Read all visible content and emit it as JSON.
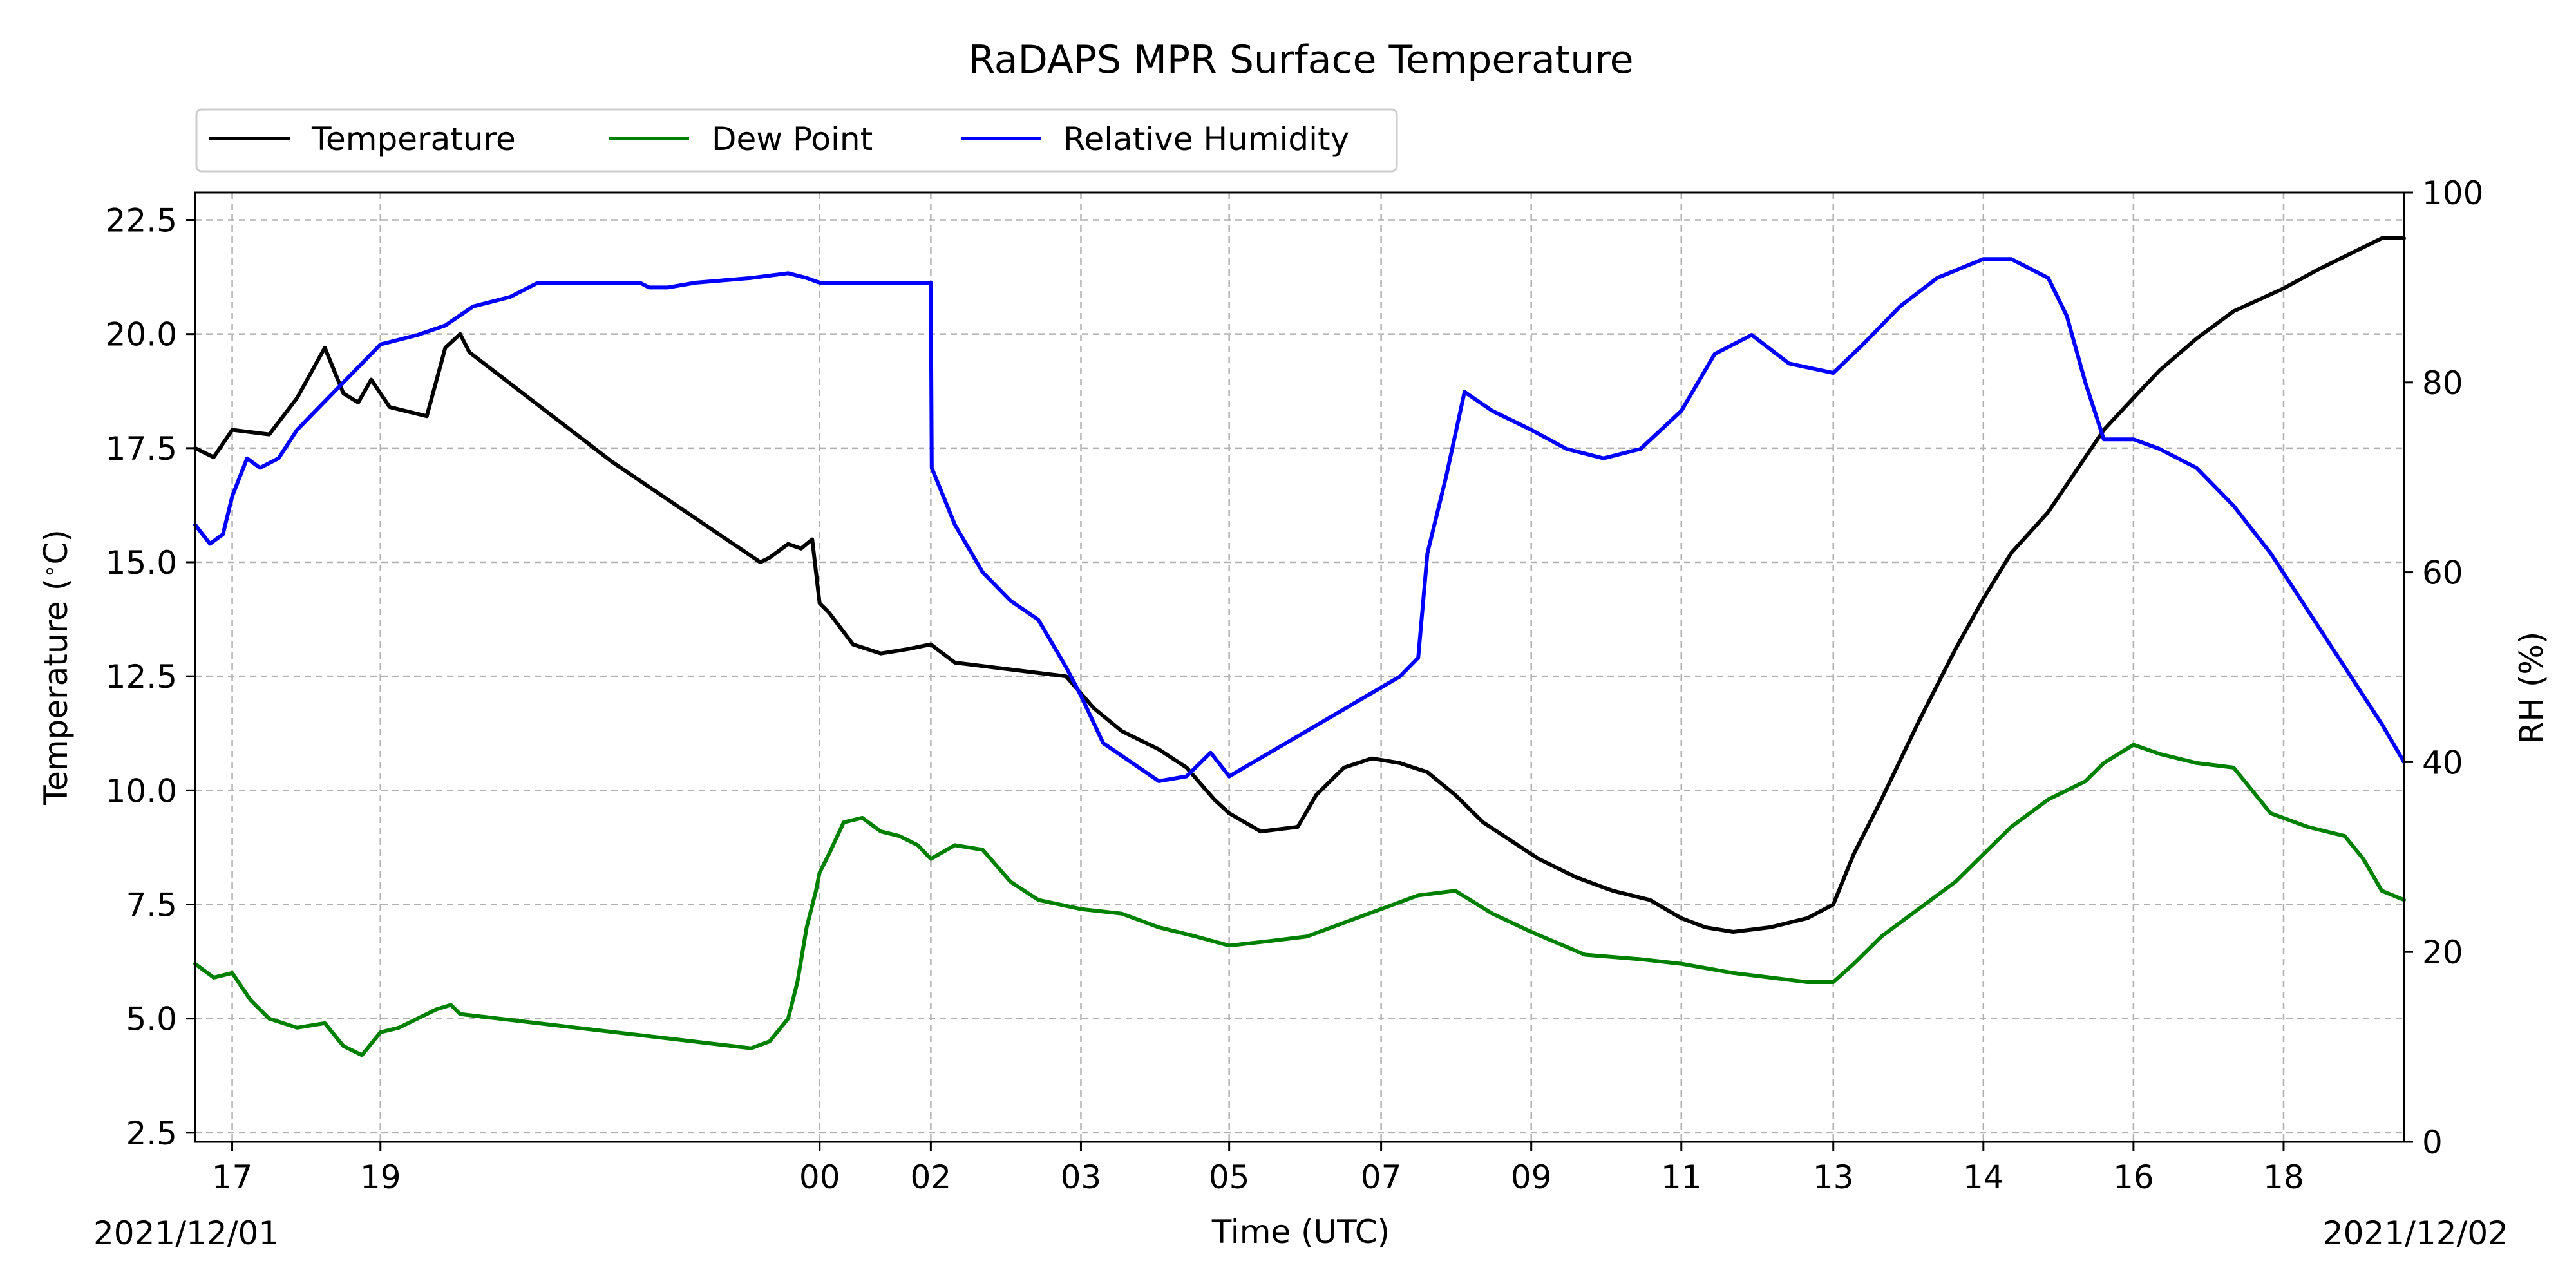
{
  "chart_data": {
    "type": "line",
    "title": "RaDAPS MPR Surface Temperature",
    "xlabel": "Time (UTC)",
    "ylabel": "Temperature ($^\\circ$C)",
    "ylabel_right": "RH (%)",
    "date_start_label": "2021/12/01",
    "date_end_label": "2021/12/02",
    "x_ticks": [
      {
        "label": "17",
        "x": 0.2
      },
      {
        "label": "19",
        "x": 1.0
      },
      {
        "label": "00",
        "x": 3.37
      },
      {
        "label": "02",
        "x": 3.97
      },
      {
        "label": "03",
        "x": 4.78
      },
      {
        "label": "05",
        "x": 5.58
      },
      {
        "label": "07",
        "x": 6.4
      },
      {
        "label": "09",
        "x": 7.21
      },
      {
        "label": "11",
        "x": 8.02
      },
      {
        "label": "13",
        "x": 8.84
      },
      {
        "label": "14",
        "x": 9.65
      },
      {
        "label": "16",
        "x": 10.46
      },
      {
        "label": "18",
        "x": 11.27
      }
    ],
    "xlim": [
      0,
      11.92
    ],
    "ylim": [
      2.3,
      23.1
    ],
    "yticks": [
      2.5,
      5.0,
      7.5,
      10.0,
      12.5,
      15.0,
      17.5,
      20.0,
      22.5
    ],
    "ylim_right": [
      0,
      100
    ],
    "yticks_right": [
      0,
      20,
      40,
      60,
      80,
      100
    ],
    "grid": true,
    "legend_position": "top-left, outside plot",
    "series": [
      {
        "name": "Temperature",
        "axis": "left",
        "color": "#000000",
        "x": [
          0,
          0.1,
          0.2,
          0.4,
          0.55,
          0.7,
          0.8,
          0.88,
          0.95,
          1.05,
          1.15,
          1.25,
          1.35,
          1.43,
          1.48,
          2.25,
          3.05,
          3.1,
          3.2,
          3.27,
          3.33,
          3.37,
          3.42,
          3.55,
          3.7,
          3.85,
          3.97,
          4.1,
          4.3,
          4.5,
          4.7,
          4.85,
          5.0,
          5.2,
          5.35,
          5.5,
          5.58,
          5.75,
          5.95,
          6.05,
          6.2,
          6.35,
          6.5,
          6.65,
          6.8,
          6.95,
          7.1,
          7.25,
          7.45,
          7.65,
          7.85,
          8.02,
          8.15,
          8.3,
          8.5,
          8.7,
          8.84,
          8.95,
          9.1,
          9.3,
          9.5,
          9.65,
          9.8,
          10.0,
          10.15,
          10.3,
          10.46,
          10.6,
          10.8,
          11.0,
          11.27,
          11.45,
          11.65,
          11.8,
          11.92
        ],
        "y": [
          17.5,
          17.3,
          17.9,
          17.8,
          18.6,
          19.7,
          18.7,
          18.5,
          19.0,
          18.4,
          18.3,
          18.2,
          19.7,
          20.0,
          19.6,
          17.2,
          15.0,
          15.1,
          15.4,
          15.3,
          15.5,
          14.1,
          13.9,
          13.2,
          13.0,
          13.1,
          13.2,
          12.8,
          12.7,
          12.6,
          12.5,
          11.8,
          11.3,
          10.9,
          10.5,
          9.8,
          9.5,
          9.1,
          9.2,
          9.9,
          10.5,
          10.7,
          10.6,
          10.4,
          9.9,
          9.3,
          8.9,
          8.5,
          8.1,
          7.8,
          7.6,
          7.2,
          7.0,
          6.9,
          7.0,
          7.2,
          7.5,
          8.6,
          9.8,
          11.5,
          13.1,
          14.2,
          15.2,
          16.1,
          17.0,
          17.9,
          18.6,
          19.2,
          19.9,
          20.5,
          21.0,
          21.4,
          21.8,
          22.1,
          22.1
        ]
      },
      {
        "name": "Dew Point",
        "axis": "left",
        "color": "#008000",
        "x": [
          0,
          0.1,
          0.2,
          0.3,
          0.4,
          0.55,
          0.7,
          0.8,
          0.9,
          1.0,
          1.1,
          1.2,
          1.3,
          1.38,
          1.43,
          3.0,
          3.1,
          3.2,
          3.25,
          3.3,
          3.35,
          3.37,
          3.42,
          3.5,
          3.6,
          3.7,
          3.8,
          3.9,
          3.97,
          4.1,
          4.25,
          4.4,
          4.55,
          4.78,
          5.0,
          5.2,
          5.4,
          5.58,
          5.8,
          6.0,
          6.2,
          6.4,
          6.6,
          6.8,
          7.0,
          7.21,
          7.5,
          7.8,
          8.02,
          8.3,
          8.5,
          8.7,
          8.84,
          8.95,
          9.1,
          9.3,
          9.5,
          9.65,
          9.8,
          10.0,
          10.2,
          10.3,
          10.46,
          10.6,
          10.8,
          11.0,
          11.2,
          11.4,
          11.6,
          11.7,
          11.8,
          11.92
        ],
        "y": [
          6.2,
          5.9,
          6.0,
          5.4,
          5.0,
          4.8,
          4.9,
          4.4,
          4.2,
          4.7,
          4.8,
          5.0,
          5.2,
          5.3,
          5.1,
          4.35,
          4.5,
          5.0,
          5.8,
          7.0,
          7.8,
          8.2,
          8.6,
          9.3,
          9.4,
          9.1,
          9.0,
          8.8,
          8.5,
          8.8,
          8.7,
          8.0,
          7.6,
          7.4,
          7.3,
          7.0,
          6.8,
          6.6,
          6.7,
          6.8,
          7.1,
          7.4,
          7.7,
          7.8,
          7.3,
          6.9,
          6.4,
          6.3,
          6.2,
          6.0,
          5.9,
          5.8,
          5.8,
          6.2,
          6.8,
          7.4,
          8.0,
          8.6,
          9.2,
          9.8,
          10.2,
          10.6,
          11.0,
          10.8,
          10.6,
          10.5,
          9.5,
          9.2,
          9.0,
          8.5,
          7.8,
          7.6
        ]
      },
      {
        "name": "Relative Humidity",
        "axis": "right",
        "color": "#0000ff",
        "x": [
          0,
          0.08,
          0.15,
          0.2,
          0.28,
          0.35,
          0.45,
          0.55,
          0.65,
          0.75,
          0.85,
          0.95,
          1.0,
          1.1,
          1.2,
          1.35,
          1.5,
          1.7,
          1.85,
          1.95,
          2.0,
          2.2,
          2.4,
          2.45,
          2.55,
          2.7,
          3.0,
          3.2,
          3.3,
          3.37,
          3.5,
          3.97,
          3.975,
          4.1,
          4.25,
          4.4,
          4.55,
          4.7,
          4.78,
          4.9,
          5.05,
          5.2,
          5.35,
          5.48,
          5.52,
          5.58,
          6.5,
          6.6,
          6.65,
          6.75,
          6.85,
          7.0,
          7.21,
          7.4,
          7.6,
          7.8,
          8.02,
          8.2,
          8.4,
          8.6,
          8.84,
          9.0,
          9.2,
          9.4,
          9.65,
          9.8,
          10.0,
          10.1,
          10.2,
          10.3,
          10.46,
          10.6,
          10.8,
          11.0,
          11.2,
          11.4,
          11.6,
          11.8,
          11.92
        ],
        "y": [
          65,
          63,
          64,
          68,
          72,
          71,
          72,
          75,
          77,
          79,
          81,
          83,
          84,
          84.5,
          85,
          86,
          88,
          89,
          90.5,
          90.5,
          90.5,
          90.5,
          90.5,
          90,
          90,
          90.5,
          91,
          91.5,
          91,
          90.5,
          90.5,
          90.5,
          71,
          65,
          60,
          57,
          55,
          50,
          47,
          42,
          40,
          38,
          38.5,
          41,
          40,
          38.5,
          49,
          51,
          62,
          70,
          79,
          77,
          75,
          73,
          72,
          73,
          77,
          83,
          85,
          82,
          81,
          84,
          88,
          91,
          93,
          93,
          91,
          87,
          80,
          74,
          74,
          73,
          71,
          67,
          62,
          56,
          50,
          44,
          40
        ]
      }
    ]
  }
}
